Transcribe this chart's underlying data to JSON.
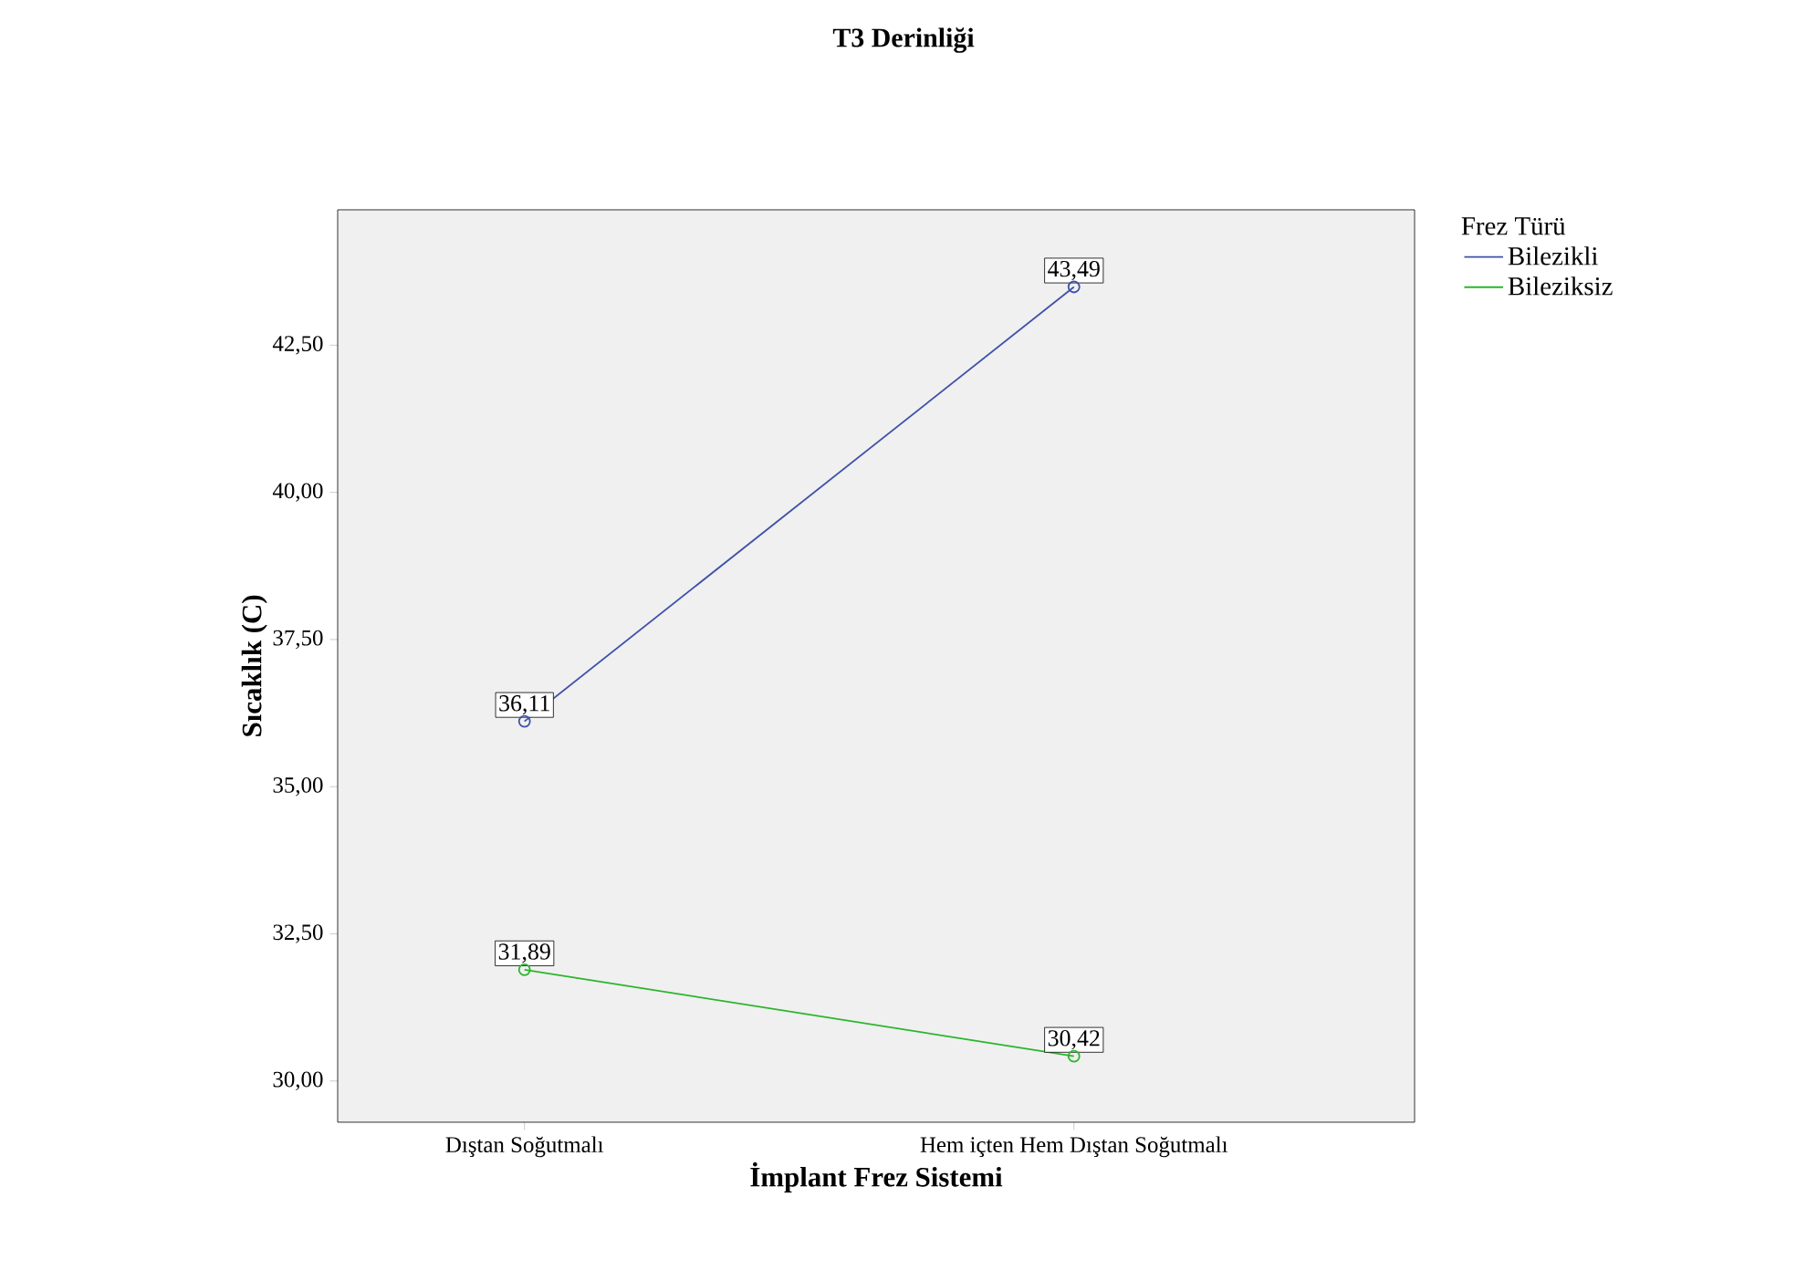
{
  "chart_data": {
    "type": "line",
    "title": "T3 Derinliği",
    "xlabel": "İmplant Frez Sistemi",
    "ylabel": "Sıcaklık (C)",
    "legend_title": "Frez Türü",
    "categories": [
      "Dıştan Soğutmalı",
      "Hem içten Hem Dıştan Soğutmalı"
    ],
    "series": [
      {
        "name": "Bilezikli",
        "color": "#3f51a8",
        "values": [
          36.11,
          43.49
        ],
        "value_labels": [
          "36,11",
          "43,49"
        ]
      },
      {
        "name": "Bileziksiz",
        "color": "#2bb52b",
        "values": [
          31.89,
          30.42
        ],
        "value_labels": [
          "31,89",
          "30,42"
        ]
      }
    ],
    "ylim": [
      29.3,
      44.8
    ],
    "yticks": [
      {
        "value": 30,
        "label": "30,00"
      },
      {
        "value": 32.5,
        "label": "32,50"
      },
      {
        "value": 35,
        "label": "35,00"
      },
      {
        "value": 37.5,
        "label": "37,50"
      },
      {
        "value": 40,
        "label": "40,00"
      },
      {
        "value": 42.5,
        "label": "42,50"
      }
    ],
    "grid": false,
    "legend": "right",
    "marker": "circle",
    "line_style": "solid"
  }
}
